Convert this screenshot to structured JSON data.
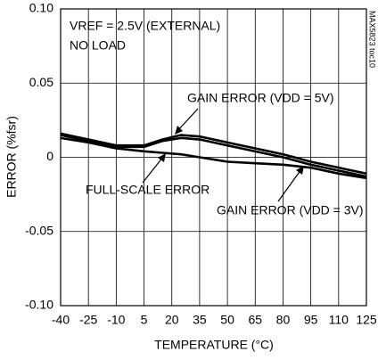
{
  "chart_data": {
    "type": "line",
    "x_label": "TEMPERATURE (°C)",
    "y_label": "ERROR (%fsr)",
    "annotations": [
      "VREF = 2.5V (EXTERNAL)",
      "NO LOAD",
      "MAX5823 toc10"
    ],
    "x": [
      -40,
      -25,
      -10,
      5,
      15,
      25,
      35,
      50,
      65,
      80,
      95,
      110,
      125
    ],
    "series": [
      {
        "name": "GAIN ERROR (VDD = 5V)",
        "color": "#000000",
        "values": [
          0.016,
          0.012,
          0.008,
          0.008,
          0.012,
          0.015,
          0.014,
          0.01,
          0.006,
          0.002,
          -0.003,
          -0.007,
          -0.011
        ]
      },
      {
        "name": "GAIN ERROR (VDD = 3V)",
        "color": "#000000",
        "values": [
          0.015,
          0.011,
          0.007,
          0.007,
          0.011,
          0.013,
          0.012,
          0.008,
          0.004,
          0,
          -0.005,
          -0.009,
          -0.013
        ]
      },
      {
        "name": "FULL-SCALE ERROR",
        "color": "#000000",
        "values": [
          0.013,
          0.01,
          0.006,
          0.004,
          0.003,
          0.002,
          0,
          -0.003,
          -0.004,
          -0.005,
          -0.007,
          -0.011,
          -0.014
        ]
      }
    ],
    "xlim": [
      -40,
      125
    ],
    "xticks": [
      -40,
      -25,
      -10,
      5,
      20,
      35,
      50,
      65,
      80,
      95,
      110,
      125
    ],
    "ylim": [
      -0.1,
      0.1
    ],
    "yticks": [
      {
        "value": -0.1,
        "label": "-0.10"
      },
      -0.05,
      0,
      0.05,
      {
        "value": 0.1,
        "label": "0.10"
      }
    ],
    "grid": true
  }
}
